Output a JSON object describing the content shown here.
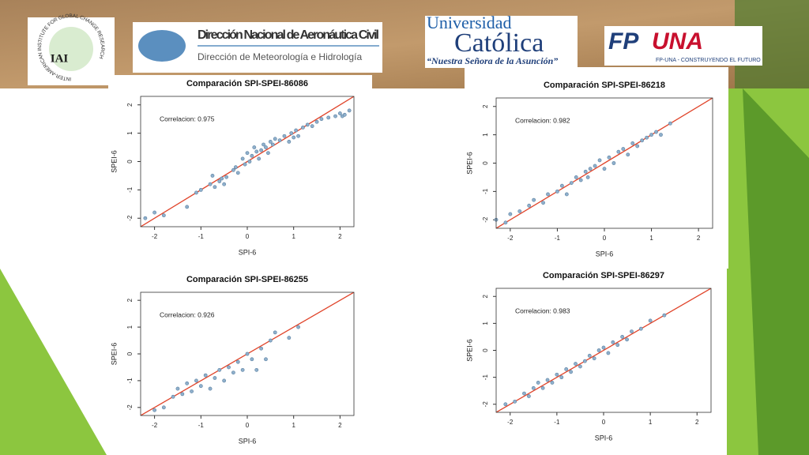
{
  "logos": {
    "iai": "IAI",
    "iai_ring": "INTER-AMERICAN INSTITUTE FOR GLOBAL CHANGE RESEARCH",
    "dinac_title": "Dirección Nacional de Aeronáutica Civil",
    "dinac_subtitle": "Dirección de Meteorología e Hidrología",
    "uc_line1": "Universidad",
    "uc_line2": "Católica",
    "uc_motto": "“Nuestra Señora de la Asunción”",
    "fpuna_a": "FP",
    "fpuna_b": "UNA",
    "fpuna_motto": "FP-UNA - CONSTRUYENDO EL FUTURO"
  },
  "chart_data": [
    {
      "type": "scatter",
      "title": "Comparación SPI-SPEI-86086",
      "annotation": "Correlacion: 0.975",
      "x_label": "SPI-6",
      "y_label": "SPEI-6",
      "color": "#8fb0cc",
      "xlim": [
        -2.3,
        2.3
      ],
      "ylim": [
        -2.3,
        2.3
      ],
      "xticks": [
        -2,
        -1,
        0,
        1,
        2
      ],
      "yticks": [
        -2,
        -1,
        0,
        1,
        2
      ],
      "trend_line": {
        "color": "#e0442a",
        "x": [
          -2.3,
          2.3
        ],
        "y": [
          -2.3,
          2.3
        ]
      },
      "x": [
        -2.2,
        -2.0,
        -1.8,
        -1.3,
        -1.1,
        -1.0,
        -0.8,
        -0.75,
        -0.7,
        -0.6,
        -0.55,
        -0.5,
        -0.45,
        -0.3,
        -0.25,
        -0.2,
        -0.1,
        -0.05,
        0,
        0.05,
        0.1,
        0.15,
        0.2,
        0.25,
        0.3,
        0.35,
        0.4,
        0.45,
        0.5,
        0.55,
        0.6,
        0.7,
        0.8,
        0.9,
        0.95,
        1.0,
        1.05,
        1.1,
        1.2,
        1.3,
        1.4,
        1.5,
        1.6,
        1.75,
        1.9,
        2.0,
        2.05,
        2.1,
        2.2
      ],
      "y": [
        -2.0,
        -1.8,
        -1.9,
        -1.6,
        -1.1,
        -1.0,
        -0.8,
        -0.5,
        -0.9,
        -0.7,
        -0.6,
        -0.8,
        -0.55,
        -0.3,
        -0.2,
        -0.4,
        0.1,
        -0.1,
        0.3,
        0.0,
        0.2,
        0.5,
        0.35,
        0.1,
        0.4,
        0.6,
        0.5,
        0.3,
        0.7,
        0.6,
        0.8,
        0.75,
        0.9,
        0.7,
        1.0,
        0.85,
        1.1,
        0.9,
        1.2,
        1.3,
        1.25,
        1.4,
        1.5,
        1.55,
        1.6,
        1.7,
        1.6,
        1.65,
        1.8
      ]
    },
    {
      "type": "scatter",
      "title": "Comparación SPI-SPEI-86218",
      "annotation": "Correlacion: 0.982",
      "x_label": "SPI-6",
      "y_label": "SPEI-6",
      "color": "#8fb0cc",
      "xlim": [
        -2.3,
        2.3
      ],
      "ylim": [
        -2.3,
        2.3
      ],
      "xticks": [
        -2,
        -1,
        0,
        1,
        2
      ],
      "yticks": [
        -2,
        -1,
        0,
        1,
        2
      ],
      "trend_line": {
        "color": "#e0442a",
        "x": [
          -2.3,
          2.3
        ],
        "y": [
          -2.3,
          2.3
        ]
      },
      "x": [
        -2.3,
        -2.1,
        -2.0,
        -1.8,
        -1.6,
        -1.5,
        -1.3,
        -1.2,
        -1.0,
        -0.9,
        -0.8,
        -0.7,
        -0.6,
        -0.5,
        -0.4,
        -0.35,
        -0.3,
        -0.2,
        -0.1,
        0,
        0.1,
        0.2,
        0.3,
        0.4,
        0.5,
        0.6,
        0.7,
        0.8,
        0.9,
        1.0,
        1.1,
        1.2,
        1.4
      ],
      "y": [
        -2.0,
        -2.1,
        -1.8,
        -1.7,
        -1.5,
        -1.3,
        -1.4,
        -1.1,
        -1.0,
        -0.8,
        -1.1,
        -0.7,
        -0.5,
        -0.6,
        -0.3,
        -0.5,
        -0.2,
        -0.1,
        0.1,
        -0.2,
        0.2,
        0.0,
        0.4,
        0.5,
        0.3,
        0.7,
        0.6,
        0.8,
        0.9,
        1.0,
        1.1,
        1.0,
        1.4
      ]
    },
    {
      "type": "scatter",
      "title": "Comparación SPI-SPEI-86255",
      "annotation": "Correlacion: 0.926",
      "x_label": "SPI-6",
      "y_label": "SPEI-6",
      "color": "#8fb0cc",
      "xlim": [
        -2.3,
        2.3
      ],
      "ylim": [
        -2.3,
        2.3
      ],
      "xticks": [
        -2,
        -1,
        0,
        1,
        2
      ],
      "yticks": [
        -2,
        -1,
        0,
        1,
        2
      ],
      "trend_line": {
        "color": "#e0442a",
        "x": [
          -2.3,
          2.3
        ],
        "y": [
          -2.3,
          2.3
        ]
      },
      "x": [
        -2.0,
        -1.8,
        -1.6,
        -1.5,
        -1.4,
        -1.3,
        -1.2,
        -1.1,
        -1.0,
        -0.9,
        -0.8,
        -0.7,
        -0.6,
        -0.5,
        -0.4,
        -0.3,
        -0.2,
        -0.1,
        0,
        0.1,
        0.2,
        0.3,
        0.4,
        0.5,
        0.6,
        0.9,
        1.1
      ],
      "y": [
        -2.1,
        -2.0,
        -1.6,
        -1.3,
        -1.5,
        -1.1,
        -1.4,
        -1.0,
        -1.2,
        -0.8,
        -1.3,
        -0.9,
        -0.6,
        -1.0,
        -0.5,
        -0.7,
        -0.3,
        -0.6,
        0.0,
        -0.2,
        -0.6,
        0.2,
        -0.2,
        0.5,
        0.8,
        0.6,
        1.0
      ]
    },
    {
      "type": "scatter",
      "title": "Comparación SPI-SPEI-86297",
      "annotation": "Correlacion: 0.983",
      "x_label": "SPI-6",
      "y_label": "SPEI-6",
      "color": "#8fb0cc",
      "xlim": [
        -2.3,
        2.3
      ],
      "ylim": [
        -2.3,
        2.3
      ],
      "xticks": [
        -2,
        -1,
        0,
        1,
        2
      ],
      "yticks": [
        -2,
        -1,
        0,
        1,
        2
      ],
      "trend_line": {
        "color": "#e0442a",
        "x": [
          -2.3,
          2.3
        ],
        "y": [
          -2.3,
          2.3
        ]
      },
      "x": [
        -2.1,
        -1.9,
        -1.7,
        -1.6,
        -1.5,
        -1.4,
        -1.3,
        -1.2,
        -1.1,
        -1.0,
        -0.9,
        -0.8,
        -0.7,
        -0.6,
        -0.5,
        -0.4,
        -0.3,
        -0.2,
        -0.1,
        0,
        0.1,
        0.2,
        0.3,
        0.4,
        0.5,
        0.6,
        0.8,
        1.0,
        1.3
      ],
      "y": [
        -2.0,
        -1.9,
        -1.6,
        -1.7,
        -1.4,
        -1.2,
        -1.4,
        -1.1,
        -1.2,
        -0.9,
        -1.0,
        -0.7,
        -0.8,
        -0.5,
        -0.6,
        -0.4,
        -0.2,
        -0.3,
        0.0,
        0.1,
        -0.1,
        0.3,
        0.2,
        0.5,
        0.4,
        0.7,
        0.8,
        1.1,
        1.3
      ]
    }
  ]
}
